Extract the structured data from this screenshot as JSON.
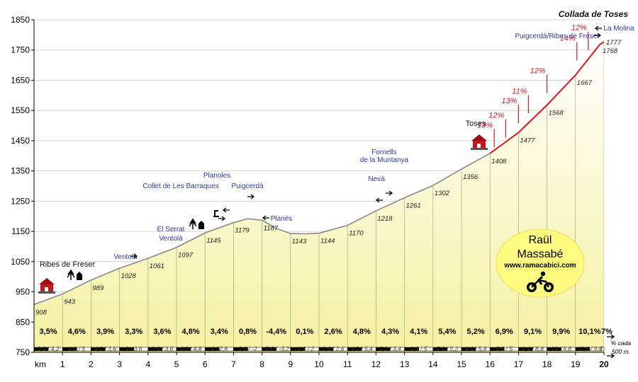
{
  "chart_data": {
    "type": "area",
    "title": "Collada de Toses",
    "xlabel": "km",
    "ylabel": "",
    "ylim": [
      750,
      1850
    ],
    "xlim": [
      0,
      20
    ],
    "yticks": [
      750,
      850,
      950,
      1050,
      1150,
      1250,
      1350,
      1450,
      1550,
      1650,
      1750,
      1850
    ],
    "xticks": [
      1,
      2,
      3,
      4,
      5,
      6,
      7,
      8,
      9,
      10,
      11,
      12,
      13,
      14,
      15,
      16,
      17,
      18,
      19,
      20
    ],
    "grid": true,
    "profile": {
      "x": [
        0,
        1,
        2,
        3,
        4,
        5,
        6,
        7,
        7.5,
        8,
        8.5,
        9,
        9.5,
        10,
        11,
        12,
        13,
        14,
        15,
        16,
        17,
        18,
        19,
        19.85,
        20
      ],
      "y": [
        908,
        943,
        989,
        1028,
        1061,
        1097,
        1145,
        1179,
        1192,
        1187,
        1160,
        1143,
        1142,
        1144,
        1170,
        1218,
        1261,
        1302,
        1356,
        1408,
        1477,
        1568,
        1667,
        1768,
        1777
      ]
    },
    "altitude_labels": [
      {
        "x": 0,
        "y": 908,
        "label": "908"
      },
      {
        "x": 1,
        "y": 943,
        "label": "943"
      },
      {
        "x": 2,
        "y": 989,
        "label": "989"
      },
      {
        "x": 3,
        "y": 1028,
        "label": "1028"
      },
      {
        "x": 4,
        "y": 1061,
        "label": "1061"
      },
      {
        "x": 5,
        "y": 1097,
        "label": "1097"
      },
      {
        "x": 6,
        "y": 1145,
        "label": "1145"
      },
      {
        "x": 7,
        "y": 1179,
        "label": "1179"
      },
      {
        "x": 8,
        "y": 1187,
        "label": "1187"
      },
      {
        "x": 9,
        "y": 1143,
        "label": "1143"
      },
      {
        "x": 10,
        "y": 1144,
        "label": "1144"
      },
      {
        "x": 11,
        "y": 1170,
        "label": "1170"
      },
      {
        "x": 12,
        "y": 1218,
        "label": "1218"
      },
      {
        "x": 13,
        "y": 1261,
        "label": "1261"
      },
      {
        "x": 14,
        "y": 1302,
        "label": "1302"
      },
      {
        "x": 15,
        "y": 1356,
        "label": "1356"
      },
      {
        "x": 16,
        "y": 1408,
        "label": "1408"
      },
      {
        "x": 17,
        "y": 1477,
        "label": "1477"
      },
      {
        "x": 18,
        "y": 1568,
        "label": "1568"
      },
      {
        "x": 19,
        "y": 1667,
        "label": "1667"
      },
      {
        "x": 20,
        "y": 1768,
        "label": "1768"
      },
      {
        "x": 20,
        "y": 1777,
        "label": "1777"
      }
    ],
    "segment_gradients": [
      "3,5%",
      "4,6%",
      "3,9%",
      "3,3%",
      "3,6%",
      "4,8%",
      "3,4%",
      "0,8%",
      "-4,4%",
      "0,1%",
      "2,6%",
      "4,8%",
      "4,3%",
      "4,1%",
      "5,4%",
      "5,2%",
      "6,9%",
      "9,1%",
      "9,9%",
      "10,1%",
      "7%"
    ],
    "half_km_gradients": [
      "2,8 / 4,2",
      "4,2 / 5",
      "4,2 / 3,6",
      "3 / 3,6",
      "3,6 / 3,6",
      "4,8 / 4,8",
      "4 / 2,8",
      "3,6 / -2",
      "-5,6 / -3,2",
      "-1,8 / 2",
      "2,6 / 2,6",
      "4,2 / 5,4",
      "5,2 / 3,4",
      "3,2 / 5",
      "5,6 / 5,2",
      "4,6 / 5,8",
      "8,8 / 5",
      "9,4 / 8,8",
      "10 / 9,8",
      "10,6 / 9,6",
      "7"
    ],
    "half_km_note": "% cada 500 m.",
    "steep_ramps": [
      {
        "x": 16.15,
        "y": 1428,
        "label": "13%"
      },
      {
        "x": 16.55,
        "y": 1460,
        "label": "12%"
      },
      {
        "x": 17.0,
        "y": 1508,
        "label": "13%"
      },
      {
        "x": 17.35,
        "y": 1540,
        "label": "11%"
      },
      {
        "x": 18.0,
        "y": 1608,
        "label": "12%"
      },
      {
        "x": 19.05,
        "y": 1715,
        "label": "14%"
      },
      {
        "x": 19.45,
        "y": 1750,
        "label": "12%"
      }
    ],
    "places": [
      {
        "x": 0,
        "y": 908,
        "label": "Ribes de Freser",
        "color": "#111111",
        "arrow": ""
      },
      {
        "x": 3.7,
        "y": 1061,
        "label": "Ventolà",
        "color": "#2b3aa8",
        "arrow": "right"
      },
      {
        "x": 5.4,
        "y": 1120,
        "label": "El Serrat",
        "color": "#2b3aa8",
        "arrow": ""
      },
      {
        "x": 5.4,
        "y": 1120,
        "label": "Ventolà",
        "color": "#2b3aa8",
        "arrow": ""
      },
      {
        "x": 6.9,
        "y": 1188,
        "label": "Collet de Les Barraques",
        "color": "#2b3aa8",
        "arrow": "right"
      },
      {
        "x": 6.9,
        "y": 1220,
        "label": "Planoles",
        "color": "#2b3aa8",
        "arrow": "left"
      },
      {
        "x": 7.4,
        "y": 1200,
        "label": "Puigcerdà",
        "color": "#2b3aa8",
        "arrow": "right"
      },
      {
        "x": 8.3,
        "y": 1187,
        "label": "Planès",
        "color": "#2b3aa8",
        "arrow": "left"
      },
      {
        "x": 12.4,
        "y": 1240,
        "label": "Nevà",
        "color": "#2b3aa8",
        "arrow": "left"
      },
      {
        "x": 12.6,
        "y": 1250,
        "label": "Fornells",
        "color": "#2b3aa8",
        "arrow": ""
      },
      {
        "x": 12.6,
        "y": 1250,
        "label": "de la Muntanya",
        "color": "#2b3aa8",
        "arrow": "right"
      },
      {
        "x": 15.9,
        "y": 1460,
        "label": "Toses",
        "color": "#111111",
        "arrow": ""
      },
      {
        "x": 19.85,
        "y": 1768,
        "label": "Puigcerdà/Ribes de Freser",
        "color": "#2b3aa8",
        "arrow": "right"
      },
      {
        "x": 20.1,
        "y": 1790,
        "label": "La Molina",
        "color": "#2b3aa8",
        "arrow": "left"
      }
    ],
    "colors": {
      "fill_bottom": "#f5f0a0",
      "fill_top": "#ffffff",
      "profile_line": "#888888",
      "steep_line": "#e8141e",
      "place_label": "#2b3aa8",
      "grid": "#c8c8c8",
      "badge": "#fffb80"
    },
    "badge": {
      "name_line1": "Raül",
      "name_line2": "Massabé",
      "url": "www.ramacabici.com",
      "icon": "cyclist-icon"
    }
  }
}
